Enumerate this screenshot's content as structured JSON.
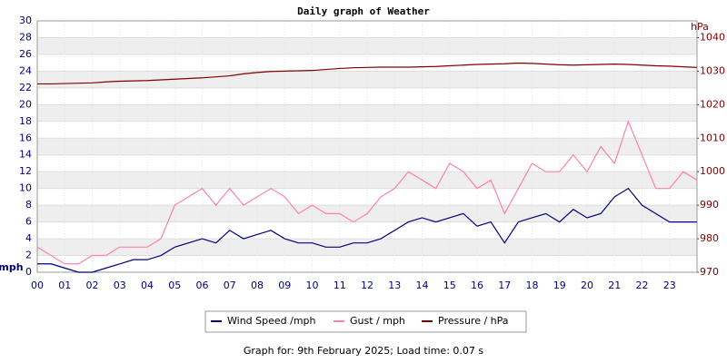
{
  "chart_data": {
    "type": "line",
    "title": "Daily graph of Weather",
    "ylabel": "mph",
    "y2label": "hPa",
    "footer": "Graph for: 9th February 2025; Load time: 0.07 s",
    "x": [
      0,
      0.5,
      1,
      1.5,
      2,
      2.5,
      3,
      3.5,
      4,
      4.5,
      5,
      5.5,
      6,
      6.5,
      7,
      7.5,
      8,
      8.5,
      9,
      9.5,
      10,
      10.5,
      11,
      11.5,
      12,
      12.5,
      13,
      13.5,
      14,
      14.5,
      15,
      15.5,
      16,
      16.5,
      17,
      17.5,
      18,
      18.5,
      19,
      19.5,
      20,
      20.5,
      21,
      21.5,
      22,
      22.5,
      23,
      23.5,
      24
    ],
    "xlim": [
      0,
      24
    ],
    "xticks": [
      {
        "value": 0,
        "label": "00"
      },
      {
        "value": 1,
        "label": "01"
      },
      {
        "value": 2,
        "label": "02"
      },
      {
        "value": 3,
        "label": "03"
      },
      {
        "value": 4,
        "label": "04"
      },
      {
        "value": 5,
        "label": "05"
      },
      {
        "value": 6,
        "label": "06"
      },
      {
        "value": 7,
        "label": "07"
      },
      {
        "value": 8,
        "label": "08"
      },
      {
        "value": 9,
        "label": "09"
      },
      {
        "value": 10,
        "label": "10"
      },
      {
        "value": 11,
        "label": "11"
      },
      {
        "value": 12,
        "label": "12"
      },
      {
        "value": 13,
        "label": "13"
      },
      {
        "value": 14,
        "label": "14"
      },
      {
        "value": 15,
        "label": "15"
      },
      {
        "value": 16,
        "label": "16"
      },
      {
        "value": 17,
        "label": "17"
      },
      {
        "value": 18,
        "label": "18"
      },
      {
        "value": 19,
        "label": "19"
      },
      {
        "value": 20,
        "label": "20"
      },
      {
        "value": 21,
        "label": "21"
      },
      {
        "value": 22,
        "label": "22"
      },
      {
        "value": 23,
        "label": "23"
      }
    ],
    "ylim": [
      0,
      30
    ],
    "yticks": [
      0,
      2,
      4,
      6,
      8,
      10,
      12,
      14,
      16,
      18,
      20,
      22,
      24,
      26,
      28,
      30
    ],
    "y2lim": [
      970,
      1045
    ],
    "y2ticks": [
      970,
      980,
      990,
      1000,
      1010,
      1020,
      1030,
      1040
    ],
    "grid": true,
    "series": [
      {
        "name": "Wind Speed /mph",
        "color": "#000080",
        "values": [
          1,
          1,
          0.5,
          0,
          0,
          0.5,
          1,
          1.5,
          1.5,
          2,
          3,
          3.5,
          4,
          3.5,
          5,
          4,
          4.5,
          5,
          4,
          3.5,
          3.5,
          3,
          3,
          3.5,
          3.5,
          4,
          5,
          6,
          6.5,
          6,
          6.5,
          7,
          5.5,
          6,
          3.5,
          6,
          6.5,
          7,
          6,
          7.5,
          6.5,
          7,
          9,
          10,
          8,
          7,
          6,
          6,
          6
        ]
      },
      {
        "name": "Gust / mph",
        "color": "#ff80b0",
        "values": [
          3,
          2,
          1,
          1,
          2,
          2,
          3,
          3,
          3,
          4,
          8,
          9,
          10,
          8,
          10,
          8,
          9,
          10,
          9,
          7,
          8,
          7,
          7,
          6,
          7,
          9,
          10,
          12,
          11,
          10,
          13,
          12,
          10,
          11,
          7,
          10,
          13,
          12,
          12,
          14,
          12,
          15,
          13,
          18,
          14,
          10,
          10,
          12,
          11
        ]
      },
      {
        "name": "Pressure / hPa",
        "color": "#800000",
        "axis": "y2",
        "values": [
          1026.2,
          1026.2,
          1026.3,
          1026.4,
          1026.5,
          1026.8,
          1027,
          1027.1,
          1027.2,
          1027.4,
          1027.6,
          1027.8,
          1028,
          1028.3,
          1028.6,
          1029.2,
          1029.6,
          1029.9,
          1030,
          1030.1,
          1030.2,
          1030.5,
          1030.8,
          1031,
          1031.1,
          1031.2,
          1031.2,
          1031.2,
          1031.3,
          1031.4,
          1031.6,
          1031.8,
          1032,
          1032.1,
          1032.2,
          1032.4,
          1032.3,
          1032.1,
          1031.9,
          1031.8,
          1031.9,
          1032,
          1032.1,
          1032,
          1031.8,
          1031.6,
          1031.5,
          1031.3,
          1031.1
        ]
      }
    ]
  }
}
